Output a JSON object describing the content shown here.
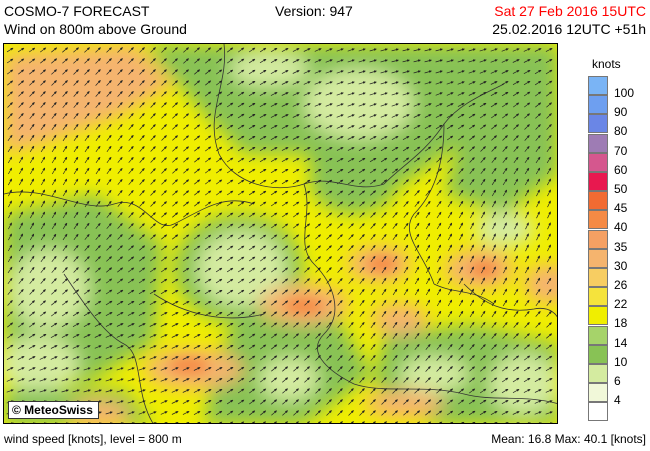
{
  "header": {
    "product": "COSMO-7 FORECAST",
    "field": "Wind on 800m above Ground",
    "version": "Version: 947",
    "valid_time": "Sat 27 Feb 2016 15UTC",
    "run_time": "25.02.2016 12UTC +51h"
  },
  "map": {
    "copyright": "© MeteoSwiss",
    "wind_direction": "from south-west"
  },
  "legend": {
    "unit": "knots",
    "levels": [
      {
        "label": "100",
        "color": "#7ab4f5"
      },
      {
        "label": "90",
        "color": "#6e9ff0"
      },
      {
        "label": "80",
        "color": "#6a86e6"
      },
      {
        "label": "70",
        "color": "#9e7cb4"
      },
      {
        "label": "60",
        "color": "#d5578e"
      },
      {
        "label": "50",
        "color": "#e8184f"
      },
      {
        "label": "45",
        "color": "#f26b32"
      },
      {
        "label": "40",
        "color": "#f58a45"
      },
      {
        "label": "35",
        "color": "#f5a063"
      },
      {
        "label": "30",
        "color": "#f5b46e"
      },
      {
        "label": "26",
        "color": "#f7cd62"
      },
      {
        "label": "22",
        "color": "#f5e33c"
      },
      {
        "label": "18",
        "color": "#f0ee00"
      },
      {
        "label": "14",
        "color": "#a6d36a"
      },
      {
        "label": "10",
        "color": "#88c255"
      },
      {
        "label": "6",
        "color": "#d4eba0"
      },
      {
        "label": "4",
        "color": "#f1f8d9"
      },
      {
        "label": "",
        "color": "#ffffff"
      }
    ]
  },
  "footer": {
    "left": "wind speed [knots], level = 800 m",
    "right": "Mean:  16.8 Max:  40.1 [knots]"
  }
}
